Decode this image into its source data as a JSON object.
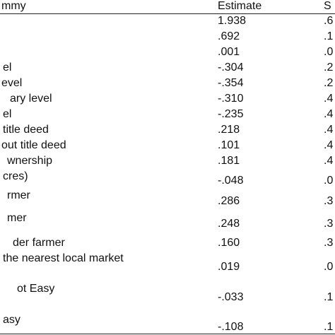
{
  "table": {
    "header": [
      "mmy",
      "Estimate",
      "S"
    ],
    "rows": [
      {
        "estimate": "1.938",
        "se": ".6"
      },
      {
        "estimate": ".692",
        "se": ".1"
      },
      {
        "estimate": ".001",
        "se": ".0"
      },
      {
        "label": "el",
        "estimate": "-.304",
        "se": ".2"
      },
      {
        "label": "evel",
        "estimate": "-.354",
        "se": ".2"
      },
      {
        "label": "ary  level",
        "estimate": "-.310",
        "se": ".4"
      },
      {
        "label": "el",
        "estimate": "-.235",
        "se": ".4"
      },
      {
        "label": "title deed",
        "estimate": ".218",
        "se": ".4"
      },
      {
        "label": "out title deed",
        "estimate": ".101",
        "se": ".4"
      },
      {
        "label": "wnership",
        "estimate": ".181",
        "se": ".4"
      },
      {
        "label": "cres)",
        "estimate": "-.048",
        "se": ".0"
      },
      {
        "label": "rmer",
        "estimate": ".286",
        "se": ".3"
      },
      {
        "label": "mer",
        "estimate": ".248",
        "se": ".3"
      },
      {
        "label": "der farmer",
        "estimate": ".160",
        "se": ".3"
      },
      {
        "label": "the nearest local market",
        "estimate": ".019",
        "se": ".0"
      },
      {
        "label": "ot Easy",
        "estimate": "-.033",
        "se": ".1"
      },
      {
        "label": "asy",
        "estimate": "-.108",
        "se": ".1"
      }
    ]
  }
}
